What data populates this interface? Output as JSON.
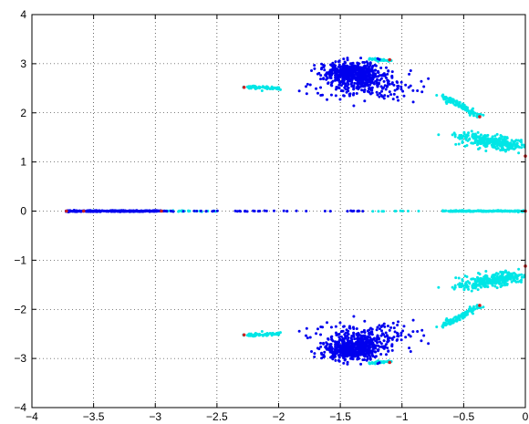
{
  "chart_data": {
    "type": "scatter",
    "title": "",
    "xlabel": "",
    "ylabel": "",
    "xlim": [
      -4,
      0
    ],
    "ylim": [
      -4,
      4
    ],
    "grid": true,
    "legend": "none",
    "x_ticks": [
      -4,
      -3.5,
      -3,
      -2.5,
      -2,
      -1.5,
      -1,
      -0.5,
      0
    ],
    "x_tick_labels": [
      "−4",
      "−3.5",
      "−3",
      "−2.5",
      "−2",
      "−1.5",
      "−1",
      "−0.5",
      "0"
    ],
    "y_ticks": [
      -4,
      -3,
      -2,
      -1,
      0,
      1,
      2,
      3,
      4
    ],
    "y_tick_labels": [
      "−4",
      "−3",
      "−2",
      "−1",
      "0",
      "1",
      "2",
      "3",
      "4"
    ],
    "colors": {
      "blue": "#0000ee",
      "cyan": "#00e6e6",
      "red": "#cc2222",
      "grid": "#000000",
      "axes": "#000000"
    },
    "clusters": [
      {
        "color": "blue",
        "cx": -1.4,
        "cy": 2.8,
        "sx": 0.12,
        "sy": 0.12,
        "n": 520,
        "symmetric": true
      },
      {
        "color": "blue",
        "cx": -1.28,
        "cy": 2.55,
        "sx": 0.18,
        "sy": 0.14,
        "n": 120,
        "symmetric": true
      },
      {
        "color": "blue",
        "cx": -1.55,
        "cy": 2.5,
        "sx": 0.14,
        "sy": 0.1,
        "n": 30,
        "symmetric": true
      },
      {
        "color": "blue",
        "cx": -1.0,
        "cy": 2.45,
        "sx": 0.08,
        "sy": 0.1,
        "n": 18,
        "symmetric": true
      },
      {
        "color": "cyan",
        "cx": -0.26,
        "cy": 1.4,
        "sx": 0.15,
        "sy": 0.07,
        "slope": -0.35,
        "n": 260,
        "symmetric": true
      },
      {
        "color": "cyan",
        "cx": -0.32,
        "cy": 1.45,
        "sx": 0.13,
        "sy": 0.06,
        "slope": -0.35,
        "n": 60,
        "symmetric": true
      }
    ],
    "segments": [
      {
        "color": "cyan",
        "x": [
          -0.67,
          -0.37
        ],
        "y": [
          2.35,
          1.93
        ],
        "n": 110,
        "spread": 0.02,
        "symmetric": true
      },
      {
        "color": "cyan",
        "x": [
          -2.28,
          -2.0
        ],
        "y": [
          2.53,
          2.5
        ],
        "n": 60,
        "spread": 0.015,
        "symmetric": true
      },
      {
        "color": "cyan",
        "x": [
          -1.27,
          -1.1
        ],
        "y": [
          3.1,
          3.05
        ],
        "n": 35,
        "spread": 0.01,
        "symmetric": true
      },
      {
        "color": "cyan",
        "x": [
          -0.67,
          0.0
        ],
        "y": [
          0.0,
          0.0
        ],
        "n": 200,
        "spread": 0.006,
        "symmetric": false
      },
      {
        "color": "cyan",
        "x": [
          -3.55,
          -2.5
        ],
        "y": [
          0.0,
          0.0
        ],
        "n": 60,
        "spread": 0.006,
        "symmetric": false
      },
      {
        "color": "blue",
        "x": [
          -3.72,
          -2.95
        ],
        "y": [
          0.0,
          0.0
        ],
        "n": 320,
        "spread": 0.006,
        "symmetric": false
      },
      {
        "color": "blue",
        "x": [
          -2.95,
          -2.05
        ],
        "y": [
          0.0,
          0.0
        ],
        "n": 30,
        "spread": 0.004,
        "symmetric": false
      },
      {
        "color": "blue",
        "x": [
          -2.05,
          -1.3
        ],
        "y": [
          0.0,
          0.0
        ],
        "n": 16,
        "spread": 0.004,
        "symmetric": false
      },
      {
        "color": "cyan",
        "x": [
          -1.25,
          -0.85
        ],
        "y": [
          0.0,
          0.0
        ],
        "n": 10,
        "spread": 0.004,
        "symmetric": false
      }
    ],
    "endpoints": [
      {
        "color": "red",
        "x": -2.28,
        "y": 2.52
      },
      {
        "color": "red",
        "x": -2.28,
        "y": -2.52
      },
      {
        "color": "red",
        "x": -1.1,
        "y": 3.08
      },
      {
        "color": "red",
        "x": -1.1,
        "y": -3.08
      },
      {
        "color": "red",
        "x": -0.37,
        "y": 1.92
      },
      {
        "color": "red",
        "x": -0.37,
        "y": -1.92
      },
      {
        "color": "red",
        "x": 0.0,
        "y": 1.12
      },
      {
        "color": "red",
        "x": 0.0,
        "y": -1.12
      },
      {
        "color": "red",
        "x": -3.72,
        "y": 0.0
      },
      {
        "color": "red",
        "x": -2.95,
        "y": 0.0
      },
      {
        "color": "red",
        "x": -3.58,
        "y": 0.0
      },
      {
        "color": "red",
        "x": 0.0,
        "y": 0.0
      }
    ]
  }
}
